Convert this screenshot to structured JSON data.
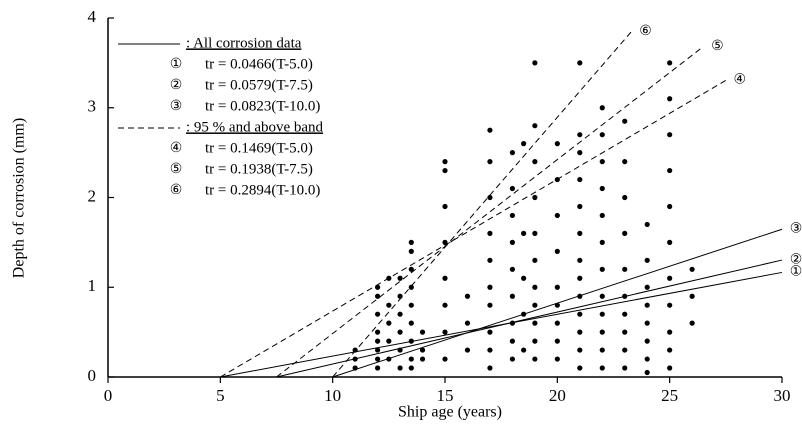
{
  "chart_data": {
    "type": "scatter",
    "x_label": "Ship age (years)",
    "y_label": "Depth of corrosion (mm)",
    "xlim": [
      0,
      30
    ],
    "xticks": [
      0,
      5,
      10,
      15,
      20,
      25,
      30
    ],
    "ylim": [
      0,
      4
    ],
    "yticks": [
      0,
      1,
      2,
      3,
      4
    ],
    "points": {
      "color": "#000000",
      "x": [
        11,
        11,
        11,
        12,
        12,
        12,
        12,
        12,
        12,
        12,
        12,
        12.5,
        12.5,
        12.5,
        12.5,
        12.5,
        13,
        13,
        13,
        13,
        13,
        13,
        13.5,
        13.5,
        13.5,
        13.5,
        13.5,
        13.5,
        13.5,
        13.5,
        13.5,
        14,
        14,
        14,
        15,
        15,
        15,
        15,
        15,
        15,
        15,
        15,
        16,
        16,
        16,
        17,
        17,
        17,
        17,
        17,
        17,
        17,
        17,
        17,
        17,
        18,
        18,
        18,
        18,
        18,
        18,
        18,
        18,
        18,
        18.5,
        18.5,
        18.5,
        18.5,
        18.5,
        19,
        19,
        19,
        19,
        19,
        19,
        19,
        19,
        19,
        19,
        19,
        20,
        20,
        20,
        20,
        20,
        20,
        20,
        20,
        20,
        21,
        21,
        21,
        21,
        21,
        21,
        21,
        21,
        21,
        21,
        21,
        21,
        21,
        22,
        22,
        22,
        22,
        22,
        22,
        22,
        22,
        22,
        22,
        22,
        22,
        23,
        23,
        23,
        23,
        23,
        23,
        23,
        23,
        23,
        23,
        24,
        24,
        24,
        24,
        24,
        24,
        24,
        24,
        25,
        25,
        25,
        25,
        25,
        25,
        25,
        25,
        25,
        25,
        25,
        26,
        26,
        26
      ],
      "values": [
        0.1,
        0.2,
        0.3,
        0.1,
        0.2,
        0.3,
        0.4,
        0.5,
        0.7,
        0.9,
        1.0,
        0.2,
        0.4,
        0.6,
        0.8,
        1.1,
        0.1,
        0.3,
        0.5,
        0.7,
        0.9,
        1.1,
        0.1,
        0.2,
        0.4,
        0.6,
        0.8,
        1.0,
        1.2,
        1.4,
        1.5,
        0.2,
        0.3,
        0.5,
        0.2,
        0.5,
        0.8,
        1.1,
        1.5,
        1.9,
        2.3,
        2.4,
        0.3,
        0.6,
        0.9,
        0.1,
        0.3,
        0.5,
        0.8,
        1.0,
        1.3,
        1.6,
        2.0,
        2.4,
        2.75,
        0.2,
        0.4,
        0.6,
        0.9,
        1.2,
        1.5,
        1.8,
        2.1,
        2.5,
        0.3,
        0.7,
        1.1,
        1.6,
        2.6,
        0.2,
        0.4,
        0.6,
        0.8,
        1.0,
        1.3,
        1.6,
        2.0,
        2.4,
        2.8,
        3.5,
        0.2,
        0.4,
        0.6,
        0.8,
        1.0,
        1.4,
        1.8,
        2.2,
        2.6,
        0.1,
        0.3,
        0.5,
        0.7,
        0.9,
        1.1,
        1.3,
        1.6,
        1.9,
        2.2,
        2.5,
        2.7,
        3.5,
        0.1,
        0.3,
        0.5,
        0.7,
        0.9,
        1.2,
        1.5,
        1.8,
        2.1,
        2.4,
        2.7,
        3.0,
        0.1,
        0.3,
        0.5,
        0.7,
        0.9,
        1.2,
        1.6,
        2.0,
        2.4,
        2.85,
        0.05,
        0.2,
        0.4,
        0.6,
        0.8,
        1.0,
        1.3,
        1.7,
        0.1,
        0.3,
        0.5,
        0.8,
        1.1,
        1.5,
        1.9,
        2.3,
        2.7,
        3.1,
        3.5,
        0.6,
        0.9,
        1.2
      ]
    },
    "legend_groups": [
      ": All corrosion data",
      ": 95 % and above band"
    ],
    "series": [
      {
        "name": "tr = 0.0466(T-5.0)",
        "marker": "①",
        "group": 0,
        "color": "#000000",
        "x": [
          5,
          30
        ],
        "values": [
          0,
          1.165
        ]
      },
      {
        "name": "tr = 0.0579(T-7.5)",
        "marker": "②",
        "group": 0,
        "color": "#000000",
        "x": [
          7.5,
          30
        ],
        "values": [
          0,
          1.303
        ]
      },
      {
        "name": "tr = 0.0823(T-10.0)",
        "marker": "③",
        "group": 0,
        "color": "#000000",
        "x": [
          10,
          30
        ],
        "values": [
          0,
          1.646
        ]
      },
      {
        "name": "tr = 0.1469(T-5.0)",
        "marker": "④",
        "group": 1,
        "color": "#000000",
        "x": [
          5,
          27.5
        ],
        "values": [
          0,
          3.305
        ]
      },
      {
        "name": "tr = 0.1938(T-7.5)",
        "marker": "⑤",
        "group": 1,
        "color": "#000000",
        "x": [
          7.5,
          26.5
        ],
        "values": [
          0,
          3.682
        ]
      },
      {
        "name": "tr = 0.2894(T-10.0)",
        "marker": "⑥",
        "group": 1,
        "color": "#000000",
        "x": [
          10,
          23.3
        ],
        "values": [
          0,
          3.849
        ]
      }
    ]
  }
}
